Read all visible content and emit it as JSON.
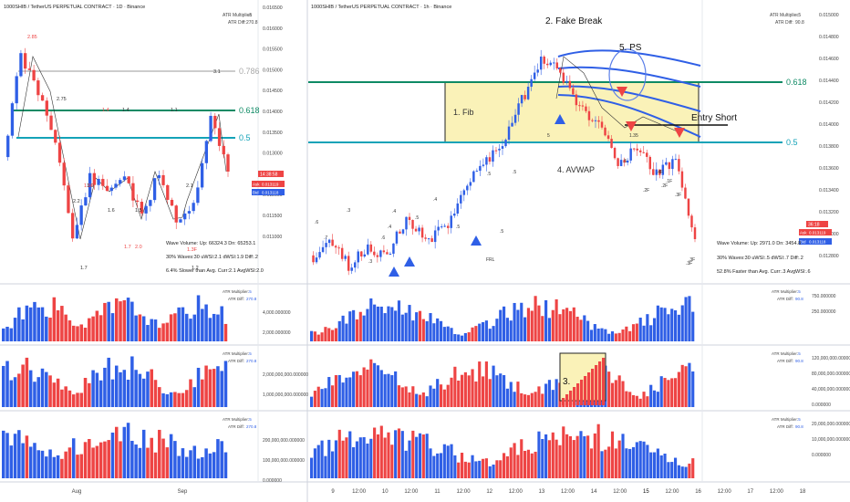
{
  "colors": {
    "up": "#2f5fe6",
    "down": "#ee4444",
    "green": "#0e8a64",
    "teal": "#14a3b8",
    "gray": "#9a9a9a",
    "box": "#faf2b8",
    "boxStroke": "#222"
  },
  "left": {
    "title": "1000SHIB / TetherUS PERPETUAL CONTRACT · 1D · Binance",
    "atr_mult_label": "ATR Multiplier:",
    "atr_mult_val": ".5",
    "atr_diff_label": "ATR Diff:",
    "atr_diff_val": "270.8",
    "fib786": "0.786",
    "fib618": "0.618",
    "fib5": "0.5",
    "prices": [
      "0.016500",
      "0.016000",
      "0.015500",
      "0.015000",
      "0.014500",
      "0.014000",
      "0.013500",
      "0.013000",
      "0.012500",
      "0.012000",
      "0.011500",
      "0.011000"
    ],
    "price_tag": "14:38:58",
    "ask_label": "Ask",
    "ask_val": "0.013119",
    "bid_label": "Bid",
    "bid_val": "0.013118",
    "stats": [
      "Wave Volume: Up: 66324.3 Dn: 65253.1",
      "30% Waves:30 uWSI:2.1 dWSI:1.9 Diff:.2",
      "6.4% Slower than Avg. Curr:2.1 AvgWSI:2.0"
    ],
    "wave_labels": [
      "2.85",
      "2.75",
      "1.9",
      "1.4",
      "1.4",
      "2.2",
      "1.9F",
      "1.6",
      "1.5",
      "2.0",
      "2.1",
      "3.1",
      "1.3F",
      "1.7",
      "1.1",
      "1.7",
      "1.2"
    ],
    "vol1_axis": [
      "4,000.000000",
      "2,000.000000"
    ],
    "vol2_axis": [
      "2,000,000,000.000000",
      "1,000,000,000.000000"
    ],
    "vol3_axis": [
      "200,000,000.000000",
      "100,000,000.000000",
      "0.000000"
    ],
    "dates": [
      "Aug",
      "Sep"
    ]
  },
  "right": {
    "title": "1000SHIB / TetherUS PERPETUAL CONTRACT · 1h · Binance",
    "atr_mult_label": "ATR Multiplier:",
    "atr_mult_val": ".5",
    "atr_diff_label": "ATR Diff:",
    "atr_diff_val": "90.8",
    "fib618": "0.618",
    "fib5": "0.5",
    "prices": [
      "0.015000",
      "0.014800",
      "0.014600",
      "0.014400",
      "0.014200",
      "0.014000",
      "0.013800",
      "0.013600",
      "0.013400",
      "0.013200",
      "0.013000",
      "0.012800"
    ],
    "price_tag": "36:18",
    "ask_label": "Ask",
    "ask_val": "0.013119",
    "bid_label": "Bid",
    "bid_val": "0.013118",
    "stats": [
      "Wave Volume: Up: 2971.0 Dn: 3454.8",
      "30% Waves:30 uWSI:.5 dWSI:.7 Diff:.2",
      "52.8% Faster than Avg. Curr:.3 AvgWSI:.6"
    ],
    "ann_fakebreak": "2. Fake Break",
    "ann_ps": "5. PS",
    "ann_fib": "1. Fib",
    "ann_entry": "Entry Short",
    "ann_avwap": "4. AVWAP",
    "ann_3": "3.",
    "wave_labels": [
      "1.35",
      ".5",
      ".5",
      ".2F",
      ".3F",
      "FRL",
      ".6",
      ".4",
      ".5",
      ".3",
      ".7",
      ".4",
      "5",
      ".3",
      ".4",
      ".5",
      ".6",
      ".5",
      ".5",
      ".1F",
      ".3F",
      ".2F",
      ".4F",
      ".3F"
    ],
    "vol1_axis": [
      "750.000000",
      "250.000000"
    ],
    "vol2_axis": [
      "120,000,000.000000",
      "80,000,000.000000",
      "40,000,000.000000",
      "0.000000"
    ],
    "vol3_axis": [
      "20,000,000.000000",
      "10,000,000.000000",
      "0.000000"
    ],
    "dates": [
      "9",
      "12:00",
      "10",
      "12:00",
      "11",
      "12:00",
      "12",
      "12:00",
      "13",
      "12:00",
      "14",
      "12:00",
      "15",
      "12:00",
      "16",
      "12:00",
      "17",
      "12:00",
      "18"
    ]
  }
}
